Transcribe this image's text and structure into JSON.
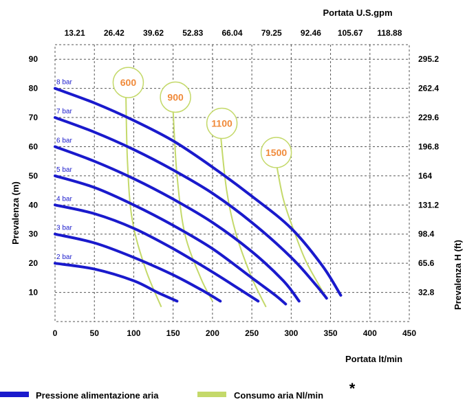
{
  "chart_data": {
    "type": "line",
    "title": "",
    "xlabel": "Portata  lt/min",
    "ylabel": "Prevalenza (m)",
    "x2label": "Portata U.S.gpm",
    "y2label": "Prevalenza H (ft)",
    "xlim": [
      0,
      450
    ],
    "ylim": [
      0,
      95
    ],
    "x_ticks": [
      "0",
      "50",
      "100",
      "150",
      "200",
      "250",
      "300",
      "350",
      "400",
      "450"
    ],
    "y_ticks": [
      "10",
      "20",
      "30",
      "40",
      "50",
      "60",
      "70",
      "80",
      "90"
    ],
    "x2_ticks": [
      "13.21",
      "26.42",
      "39.62",
      "52.83",
      "66.04",
      "79.25",
      "92.46",
      "105.67",
      "118.88"
    ],
    "y2_ticks": [
      "32.8",
      "65.6",
      "98.4",
      "131.2",
      "164",
      "196.8",
      "229.6",
      "262.4",
      "295.2"
    ],
    "grid": true,
    "series": [
      {
        "name": "8 bar",
        "kind": "pressure",
        "points": [
          [
            0,
            80
          ],
          [
            50,
            75
          ],
          [
            100,
            69
          ],
          [
            150,
            62
          ],
          [
            200,
            53
          ],
          [
            250,
            43
          ],
          [
            300,
            32
          ],
          [
            340,
            19
          ],
          [
            363,
            9
          ]
        ]
      },
      {
        "name": "7 bar",
        "kind": "pressure",
        "points": [
          [
            0,
            70
          ],
          [
            50,
            65
          ],
          [
            100,
            59
          ],
          [
            150,
            52
          ],
          [
            200,
            44
          ],
          [
            250,
            34
          ],
          [
            300,
            22
          ],
          [
            330,
            13
          ],
          [
            345,
            8
          ]
        ]
      },
      {
        "name": "6 bar",
        "kind": "pressure",
        "points": [
          [
            0,
            60
          ],
          [
            50,
            55
          ],
          [
            100,
            49
          ],
          [
            150,
            42
          ],
          [
            200,
            34
          ],
          [
            250,
            24
          ],
          [
            290,
            14
          ],
          [
            310,
            7
          ]
        ]
      },
      {
        "name": "5 bar",
        "kind": "pressure",
        "points": [
          [
            0,
            50
          ],
          [
            50,
            46
          ],
          [
            100,
            40
          ],
          [
            150,
            33
          ],
          [
            200,
            25
          ],
          [
            250,
            15
          ],
          [
            280,
            9
          ],
          [
            293,
            6
          ]
        ]
      },
      {
        "name": "4 bar",
        "kind": "pressure",
        "points": [
          [
            0,
            40
          ],
          [
            50,
            37
          ],
          [
            100,
            32
          ],
          [
            150,
            25
          ],
          [
            200,
            17
          ],
          [
            235,
            11
          ],
          [
            258,
            7
          ]
        ]
      },
      {
        "name": "3 bar",
        "kind": "pressure",
        "points": [
          [
            0,
            30
          ],
          [
            50,
            27
          ],
          [
            100,
            22
          ],
          [
            150,
            16
          ],
          [
            185,
            11
          ],
          [
            210,
            7
          ]
        ]
      },
      {
        "name": "2 bar",
        "kind": "pressure",
        "points": [
          [
            0,
            20
          ],
          [
            50,
            18
          ],
          [
            100,
            14
          ],
          [
            130,
            10
          ],
          [
            155,
            7
          ]
        ]
      },
      {
        "name": "600",
        "kind": "air",
        "points": [
          [
            90,
            78
          ],
          [
            92,
            55
          ],
          [
            98,
            35
          ],
          [
            115,
            18
          ],
          [
            135,
            5
          ]
        ]
      },
      {
        "name": "900",
        "kind": "air",
        "points": [
          [
            150,
            72
          ],
          [
            155,
            50
          ],
          [
            165,
            30
          ],
          [
            185,
            15
          ],
          [
            200,
            7
          ]
        ]
      },
      {
        "name": "1100",
        "kind": "air",
        "points": [
          [
            210,
            65
          ],
          [
            218,
            45
          ],
          [
            230,
            30
          ],
          [
            250,
            15
          ],
          [
            268,
            5
          ]
        ]
      },
      {
        "name": "1500",
        "kind": "air",
        "points": [
          [
            280,
            56
          ],
          [
            290,
            42
          ],
          [
            305,
            30
          ],
          [
            320,
            20
          ],
          [
            345,
            8
          ]
        ]
      }
    ],
    "bubbles": [
      {
        "label": "600",
        "x": 93,
        "y": 82
      },
      {
        "label": "900",
        "x": 153,
        "y": 77
      },
      {
        "label": "1100",
        "x": 212,
        "y": 68
      },
      {
        "label": "1500",
        "x": 281,
        "y": 58
      }
    ],
    "colors": {
      "pressure": "#1a1acc",
      "air": "#c4d96a",
      "grid": "#555555"
    }
  },
  "legend": {
    "items": [
      {
        "label": "Pressione alimentazione aria",
        "color": "#1a1acc"
      },
      {
        "label": "Consumo aria Nl/min",
        "color": "#c4d96a"
      }
    ],
    "asterisk": "*"
  }
}
